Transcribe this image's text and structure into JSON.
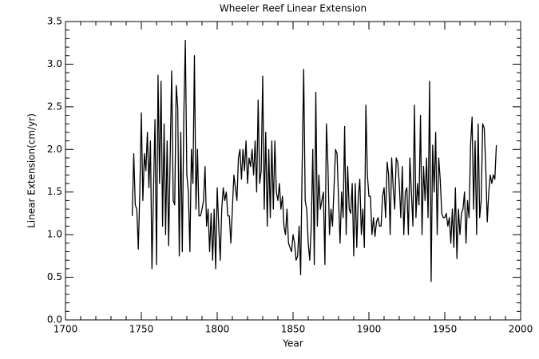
{
  "chart_data": {
    "type": "line",
    "title": "Wheeler Reef Linear Extension",
    "xlabel": "Year",
    "ylabel": "Linear Extension(cm/yr)",
    "xlim": [
      1700,
      2000
    ],
    "xticks": [
      1700,
      1750,
      1800,
      1850,
      1900,
      1950,
      2000
    ],
    "ylim": [
      0,
      3.5
    ],
    "yticks": [
      {
        "value": 0,
        "label": "0.0"
      },
      0.5,
      {
        "value": 1,
        "label": "1.0"
      },
      1.5,
      {
        "value": 2,
        "label": "2.0"
      },
      2.5,
      {
        "value": 3,
        "label": "3.0"
      },
      3.5
    ],
    "series": [
      {
        "color": "#000000",
        "x": [
          1744,
          1745,
          1746,
          1747,
          1748,
          1749,
          1750,
          1751,
          1752,
          1753,
          1754,
          1755,
          1756,
          1757,
          1758,
          1759,
          1760,
          1761,
          1762,
          1763,
          1764,
          1765,
          1766,
          1767,
          1768,
          1769,
          1770,
          1771,
          1772,
          1773,
          1774,
          1775,
          1776,
          1777,
          1778,
          1779,
          1780,
          1781,
          1782,
          1783,
          1784,
          1785,
          1786,
          1787,
          1788,
          1789,
          1790,
          1791,
          1792,
          1793,
          1794,
          1795,
          1796,
          1797,
          1798,
          1799,
          1800,
          1801,
          1802,
          1803,
          1804,
          1805,
          1806,
          1807,
          1808,
          1809,
          1810,
          1811,
          1812,
          1813,
          1814,
          1815,
          1816,
          1817,
          1818,
          1819,
          1820,
          1821,
          1822,
          1823,
          1824,
          1825,
          1826,
          1827,
          1828,
          1829,
          1830,
          1831,
          1832,
          1833,
          1834,
          1835,
          1836,
          1837,
          1838,
          1839,
          1840,
          1841,
          1842,
          1843,
          1844,
          1845,
          1846,
          1847,
          1848,
          1849,
          1850,
          1851,
          1852,
          1853,
          1854,
          1855,
          1856,
          1857,
          1858,
          1859,
          1860,
          1861,
          1862,
          1863,
          1864,
          1865,
          1866,
          1867,
          1868,
          1869,
          1870,
          1871,
          1872,
          1873,
          1874,
          1875,
          1876,
          1877,
          1878,
          1879,
          1880,
          1881,
          1882,
          1883,
          1884,
          1885,
          1886,
          1887,
          1888,
          1889,
          1890,
          1891,
          1892,
          1893,
          1894,
          1895,
          1896,
          1897,
          1898,
          1899,
          1900,
          1901,
          1902,
          1903,
          1904,
          1905,
          1906,
          1907,
          1908,
          1909,
          1910,
          1911,
          1912,
          1913,
          1914,
          1915,
          1916,
          1917,
          1918,
          1919,
          1920,
          1921,
          1922,
          1923,
          1924,
          1925,
          1926,
          1927,
          1928,
          1929,
          1930,
          1931,
          1932,
          1933,
          1934,
          1935,
          1936,
          1937,
          1938,
          1939,
          1940,
          1941,
          1942,
          1943,
          1944,
          1945,
          1946,
          1947,
          1948,
          1949,
          1950,
          1951,
          1952,
          1953,
          1954,
          1955,
          1956,
          1957,
          1958,
          1959,
          1960,
          1961,
          1962,
          1963,
          1964,
          1965,
          1966,
          1967,
          1968,
          1969,
          1970,
          1971,
          1972,
          1973,
          1974,
          1975,
          1976,
          1977,
          1978,
          1979,
          1980,
          1981,
          1982,
          1983,
          1984
        ],
        "values": [
          1.22,
          1.95,
          1.35,
          1.3,
          0.83,
          1.5,
          2.43,
          1.4,
          1.95,
          1.75,
          2.2,
          1.55,
          2.1,
          0.6,
          1.5,
          2.35,
          0.65,
          2.87,
          1.6,
          2.8,
          1.1,
          2.3,
          1.0,
          2.1,
          0.87,
          1.9,
          2.92,
          1.4,
          1.35,
          2.75,
          2.5,
          0.75,
          2.2,
          0.8,
          2.4,
          3.28,
          1.7,
          1.5,
          0.8,
          2.0,
          1.6,
          3.1,
          1.3,
          2.0,
          1.22,
          1.22,
          1.3,
          1.4,
          1.8,
          1.1,
          1.3,
          0.8,
          1.25,
          0.7,
          1.3,
          0.6,
          1.55,
          1.1,
          0.7,
          1.3,
          1.55,
          1.4,
          1.5,
          1.22,
          1.22,
          0.9,
          1.3,
          1.7,
          1.55,
          1.4,
          1.9,
          2.0,
          1.65,
          2.0,
          1.75,
          2.1,
          1.6,
          1.9,
          1.8,
          2.0,
          1.7,
          2.1,
          1.5,
          2.58,
          1.6,
          1.75,
          2.86,
          1.3,
          2.2,
          1.1,
          2.0,
          1.2,
          2.1,
          1.3,
          2.1,
          1.5,
          1.4,
          1.6,
          1.3,
          1.45,
          1.1,
          1.0,
          1.3,
          0.9,
          0.85,
          0.8,
          1.0,
          0.9,
          0.7,
          0.75,
          1.1,
          0.53,
          1.8,
          2.94,
          1.4,
          1.3,
          0.9,
          0.7,
          1.1,
          2.0,
          0.65,
          2.67,
          1.1,
          1.7,
          1.3,
          1.4,
          1.5,
          0.65,
          2.3,
          1.8,
          1.0,
          1.3,
          1.1,
          1.55,
          2.0,
          1.95,
          1.4,
          0.9,
          1.5,
          1.2,
          2.27,
          1.0,
          1.8,
          1.3,
          1.25,
          1.6,
          0.75,
          1.6,
          0.85,
          1.45,
          1.65,
          1.0,
          1.3,
          0.85,
          2.52,
          1.7,
          1.45,
          1.45,
          1.0,
          1.2,
          0.98,
          1.15,
          1.2,
          1.1,
          1.1,
          1.45,
          1.55,
          1.2,
          1.85,
          1.7,
          1.0,
          1.9,
          1.55,
          1.3,
          1.9,
          1.85,
          1.6,
          1.2,
          1.8,
          1.0,
          1.5,
          1.55,
          1.0,
          1.9,
          1.5,
          1.1,
          2.52,
          1.2,
          1.6,
          1.35,
          2.4,
          1.0,
          1.8,
          1.4,
          1.9,
          1.2,
          2.8,
          0.45,
          2.05,
          1.5,
          2.2,
          1.0,
          1.9,
          1.65,
          1.25,
          1.2,
          1.2,
          1.25,
          1.1,
          1.2,
          0.9,
          1.3,
          0.85,
          1.55,
          0.72,
          1.3,
          1.0,
          1.25,
          1.3,
          1.5,
          0.9,
          1.4,
          1.2,
          2.05,
          2.38,
          1.3,
          2.1,
          1.0,
          2.3,
          1.2,
          1.4,
          2.3,
          2.25,
          1.8,
          1.15,
          1.5,
          1.7,
          1.6,
          1.7,
          1.65,
          2.05
        ]
      }
    ]
  }
}
